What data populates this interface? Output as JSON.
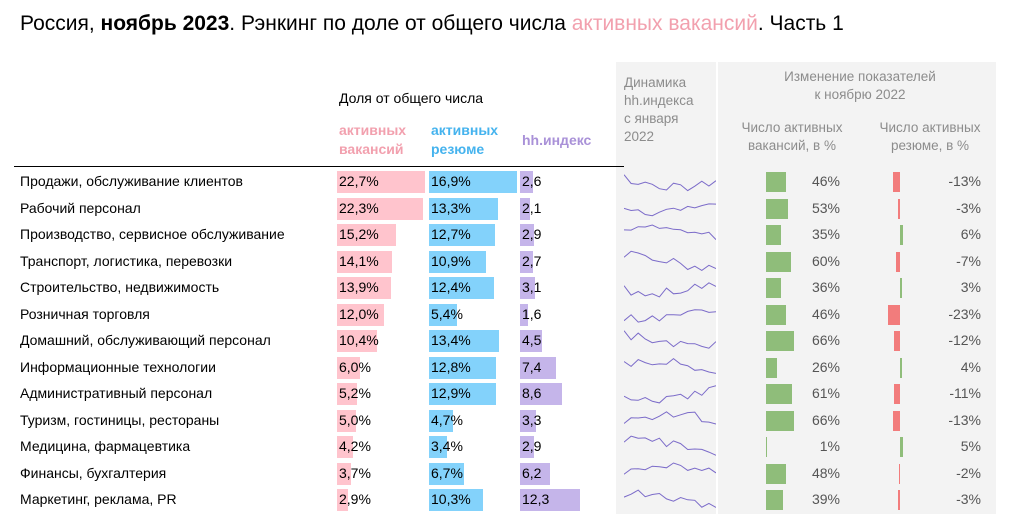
{
  "title": {
    "prefix": "Россия, ",
    "period": "ноябрь 2023",
    "middle": ". Рэнкинг по доле от общего числа ",
    "highlight": "активных вакансий",
    "suffix": ". Часть 1"
  },
  "headers": {
    "share": "Доля от общего числа",
    "col_vac_1": "активных",
    "col_vac_2": "вакансий",
    "col_res_1": "активных",
    "col_res_2": "резюме",
    "col_idx": "hh.индекс",
    "dyn_1": "Динамика",
    "dyn_2": "hh.индекса",
    "dyn_3": "с января",
    "dyn_4": "2022",
    "change_1": "Изменение показателей",
    "change_2": "к ноябрю 2022",
    "chg_vac_1": "Число активных",
    "chg_vac_2": "вакансий, в %",
    "chg_res_1": "Число активных",
    "chg_res_2": "резюме, в %"
  },
  "colors": {
    "vacancies": "#ffc4cd",
    "resumes": "#83d2fb",
    "index": "#c5b5ea",
    "growth": "#8fbd7a",
    "decline": "#f27c7c",
    "positive_res": "#8fbd7a",
    "sparkline": "#7b6bc9"
  },
  "chart_data": {
    "type": "table",
    "columns": [
      "Доля активных вакансий, %",
      "Доля активных резюме, %",
      "hh.индекс",
      "Число активных вакансий, в %",
      "Число активных резюме, в %"
    ],
    "rows": [
      {
        "category": "Продажи, обслуживание клиентов",
        "vac": "22,7%",
        "vac_v": 22.7,
        "res": "16,9%",
        "res_v": 16.9,
        "idx": "2,6",
        "idx_v": 2.6,
        "chg_vac": "46%",
        "chg_vac_v": 46,
        "chg_res": "-13%",
        "chg_res_v": -13
      },
      {
        "category": "Рабочий персонал",
        "vac": "22,3%",
        "vac_v": 22.3,
        "res": "13,3%",
        "res_v": 13.3,
        "idx": "2,1",
        "idx_v": 2.1,
        "chg_vac": "53%",
        "chg_vac_v": 53,
        "chg_res": "-3%",
        "chg_res_v": -3
      },
      {
        "category": "Производство, сервисное обслуживание",
        "vac": "15,2%",
        "vac_v": 15.2,
        "res": "12,7%",
        "res_v": 12.7,
        "idx": "2,9",
        "idx_v": 2.9,
        "chg_vac": "35%",
        "chg_vac_v": 35,
        "chg_res": "6%",
        "chg_res_v": 6
      },
      {
        "category": "Транспорт, логистика, перевозки",
        "vac": "14,1%",
        "vac_v": 14.1,
        "res": "10,9%",
        "res_v": 10.9,
        "idx": "2,7",
        "idx_v": 2.7,
        "chg_vac": "60%",
        "chg_vac_v": 60,
        "chg_res": "-7%",
        "chg_res_v": -7
      },
      {
        "category": "Строительство, недвижимость",
        "vac": "13,9%",
        "vac_v": 13.9,
        "res": "12,4%",
        "res_v": 12.4,
        "idx": "3,1",
        "idx_v": 3.1,
        "chg_vac": "36%",
        "chg_vac_v": 36,
        "chg_res": "3%",
        "chg_res_v": 3
      },
      {
        "category": "Розничная торговля",
        "vac": "12,0%",
        "vac_v": 12.0,
        "res": "5,4%",
        "res_v": 5.4,
        "idx": "1,6",
        "idx_v": 1.6,
        "chg_vac": "46%",
        "chg_vac_v": 46,
        "chg_res": "-23%",
        "chg_res_v": -23
      },
      {
        "category": "Домашний, обслуживающий персонал",
        "vac": "10,4%",
        "vac_v": 10.4,
        "res": "13,4%",
        "res_v": 13.4,
        "idx": "4,5",
        "idx_v": 4.5,
        "chg_vac": "66%",
        "chg_vac_v": 66,
        "chg_res": "-12%",
        "chg_res_v": -12
      },
      {
        "category": "Информационные технологии",
        "vac": "6,0%",
        "vac_v": 6.0,
        "res": "12,8%",
        "res_v": 12.8,
        "idx": "7,4",
        "idx_v": 7.4,
        "chg_vac": "26%",
        "chg_vac_v": 26,
        "chg_res": "4%",
        "chg_res_v": 4
      },
      {
        "category": "Административный персонал",
        "vac": "5,2%",
        "vac_v": 5.2,
        "res": "12,9%",
        "res_v": 12.9,
        "idx": "8,6",
        "idx_v": 8.6,
        "chg_vac": "61%",
        "chg_vac_v": 61,
        "chg_res": "-11%",
        "chg_res_v": -11
      },
      {
        "category": "Туризм, гостиницы, рестораны",
        "vac": "5,0%",
        "vac_v": 5.0,
        "res": "4,7%",
        "res_v": 4.7,
        "idx": "3,3",
        "idx_v": 3.3,
        "chg_vac": "66%",
        "chg_vac_v": 66,
        "chg_res": "-13%",
        "chg_res_v": -13
      },
      {
        "category": "Медицина, фармацевтика",
        "vac": "4,2%",
        "vac_v": 4.2,
        "res": "3,4%",
        "res_v": 3.4,
        "idx": "2,9",
        "idx_v": 2.9,
        "chg_vac": "1%",
        "chg_vac_v": 1,
        "chg_res": "5%",
        "chg_res_v": 5
      },
      {
        "category": "Финансы, бухгалтерия",
        "vac": "3,7%",
        "vac_v": 3.7,
        "res": "6,7%",
        "res_v": 6.7,
        "idx": "6,2",
        "idx_v": 6.2,
        "chg_vac": "48%",
        "chg_vac_v": 48,
        "chg_res": "-2%",
        "chg_res_v": -2
      },
      {
        "category": "Маркетинг, реклама, PR",
        "vac": "2,9%",
        "vac_v": 2.9,
        "res": "10,3%",
        "res_v": 10.3,
        "idx": "12,3",
        "idx_v": 12.3,
        "chg_vac": "39%",
        "chg_vac_v": 39,
        "chg_res": "-3%",
        "chg_res_v": -3
      }
    ]
  }
}
